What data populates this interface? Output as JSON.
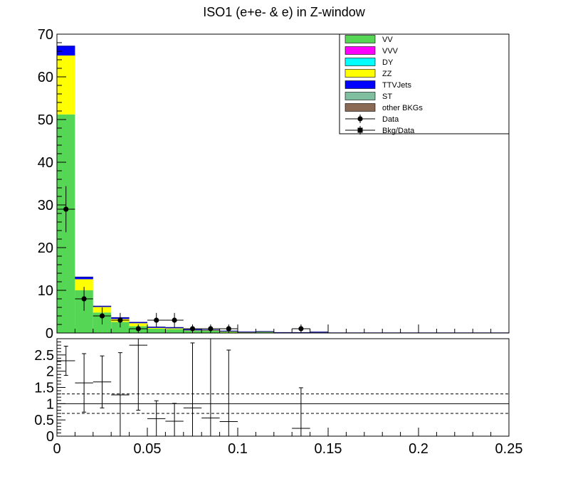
{
  "chart_data": [
    {
      "type": "bar",
      "stacked": true,
      "title": "ISO1 (e+e- & e) in Z-window",
      "xlabel": "",
      "ylabel": "",
      "xlim": [
        0,
        0.25
      ],
      "ylim": [
        0,
        70
      ],
      "bin_width": 0.01,
      "yticks": [
        "0",
        "10",
        "20",
        "30",
        "40",
        "50",
        "60",
        "70"
      ],
      "legend_position": "top-right",
      "legend": [
        {
          "label": "VV",
          "color": "#55d655",
          "style": "fill"
        },
        {
          "label": "VVV",
          "color": "#ff00ff",
          "style": "fill"
        },
        {
          "label": "DY",
          "color": "#00ffff",
          "style": "fill"
        },
        {
          "label": "ZZ",
          "color": "#ffff00",
          "style": "fill"
        },
        {
          "label": "TTVJets",
          "color": "#0000ff",
          "style": "fill"
        },
        {
          "label": "ST",
          "color": "#7fbf9f",
          "style": "fill"
        },
        {
          "label": "other BKGs",
          "color": "#8b6a55",
          "style": "fill"
        },
        {
          "label": "Data",
          "color": "#000000",
          "style": "marker-circle"
        },
        {
          "label": "Bkg/Data",
          "color": "#000000",
          "style": "marker-square"
        }
      ],
      "series": [
        {
          "name": "VV",
          "color": "#55d655",
          "values": [
            51.2,
            10.0,
            4.8,
            2.6,
            1.6,
            1.0,
            0.9,
            0.5,
            0.5,
            0.3,
            0.15,
            0.25,
            0.05,
            0.05,
            0.1,
            0.02,
            0.02,
            0.02,
            0.02,
            0.02,
            0.02,
            0.02,
            0.02,
            0.02,
            0.02
          ]
        },
        {
          "name": "ZZ",
          "color": "#ffff00",
          "values": [
            13.8,
            2.6,
            1.3,
            0.7,
            0.7,
            0.2,
            0.2,
            0.1,
            0.1,
            0.05,
            0.05,
            0.05,
            0.02,
            0.02,
            0.02,
            0.0,
            0.0,
            0.0,
            0.0,
            0.0,
            0.0,
            0.0,
            0.0,
            0.0,
            0.0
          ]
        },
        {
          "name": "TTVJets",
          "color": "#0000ff",
          "values": [
            2.2,
            0.5,
            0.2,
            0.3,
            0.2,
            0.2,
            0.2,
            0.2,
            0.1,
            0.1,
            0.05,
            0.05,
            0.03,
            0.03,
            0.1,
            0.02,
            0.02,
            0.02,
            0.02,
            0.02,
            0.02,
            0.02,
            0.02,
            0.02,
            0.02
          ]
        }
      ],
      "data": {
        "name": "Data",
        "x": [
          0.005,
          0.015,
          0.025,
          0.035,
          0.045,
          0.055,
          0.065,
          0.075,
          0.085,
          0.095,
          0.135
        ],
        "y": [
          29,
          8,
          4,
          3,
          1,
          3,
          3,
          1,
          1,
          1,
          1
        ],
        "yerr": [
          5.4,
          2.8,
          2.0,
          1.7,
          1.0,
          1.7,
          1.7,
          1.0,
          1.0,
          1.0,
          1.0
        ]
      }
    },
    {
      "type": "scatter",
      "name": "Bkg/Data",
      "xlabel": "",
      "ylabel": "",
      "xlim": [
        0,
        0.25
      ],
      "ylim": [
        0,
        3
      ],
      "xticks": [
        "0",
        "0.05",
        "0.1",
        "0.15",
        "0.2",
        "0.25"
      ],
      "yticks": [
        "0",
        "0.5",
        "1",
        "1.5",
        "2",
        "2.5"
      ],
      "reference_lines": [
        0.7,
        1.0,
        1.3
      ],
      "x": [
        0.005,
        0.015,
        0.025,
        0.035,
        0.045,
        0.055,
        0.065,
        0.075,
        0.085,
        0.095,
        0.135
      ],
      "y": [
        2.32,
        1.64,
        1.67,
        1.27,
        2.8,
        0.54,
        0.46,
        0.87,
        0.56,
        0.45,
        0.24
      ],
      "yerr": [
        0.45,
        0.9,
        0.8,
        1.3,
        2.0,
        0.55,
        0.55,
        2.0,
        2.6,
        2.2,
        1.25
      ]
    }
  ]
}
